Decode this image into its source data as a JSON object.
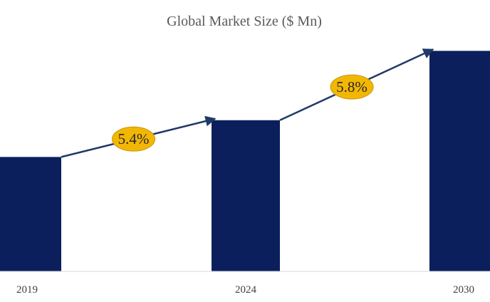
{
  "chart_data": {
    "type": "bar",
    "title": "Global Market Size ($ Mn)",
    "categories": [
      "2019",
      "2024",
      "2030"
    ],
    "values": [
      165,
      218,
      318
    ],
    "ylim": [
      0,
      340
    ],
    "grid": false,
    "bar_color": "#0A1F5C",
    "annotations": [
      {
        "text": "5.4%",
        "from": "2019",
        "to": "2024"
      },
      {
        "text": "5.8%",
        "from": "2024",
        "to": "2030"
      }
    ],
    "annotation_fill": "#F2B705",
    "arrow_color": "#1F3A68"
  }
}
